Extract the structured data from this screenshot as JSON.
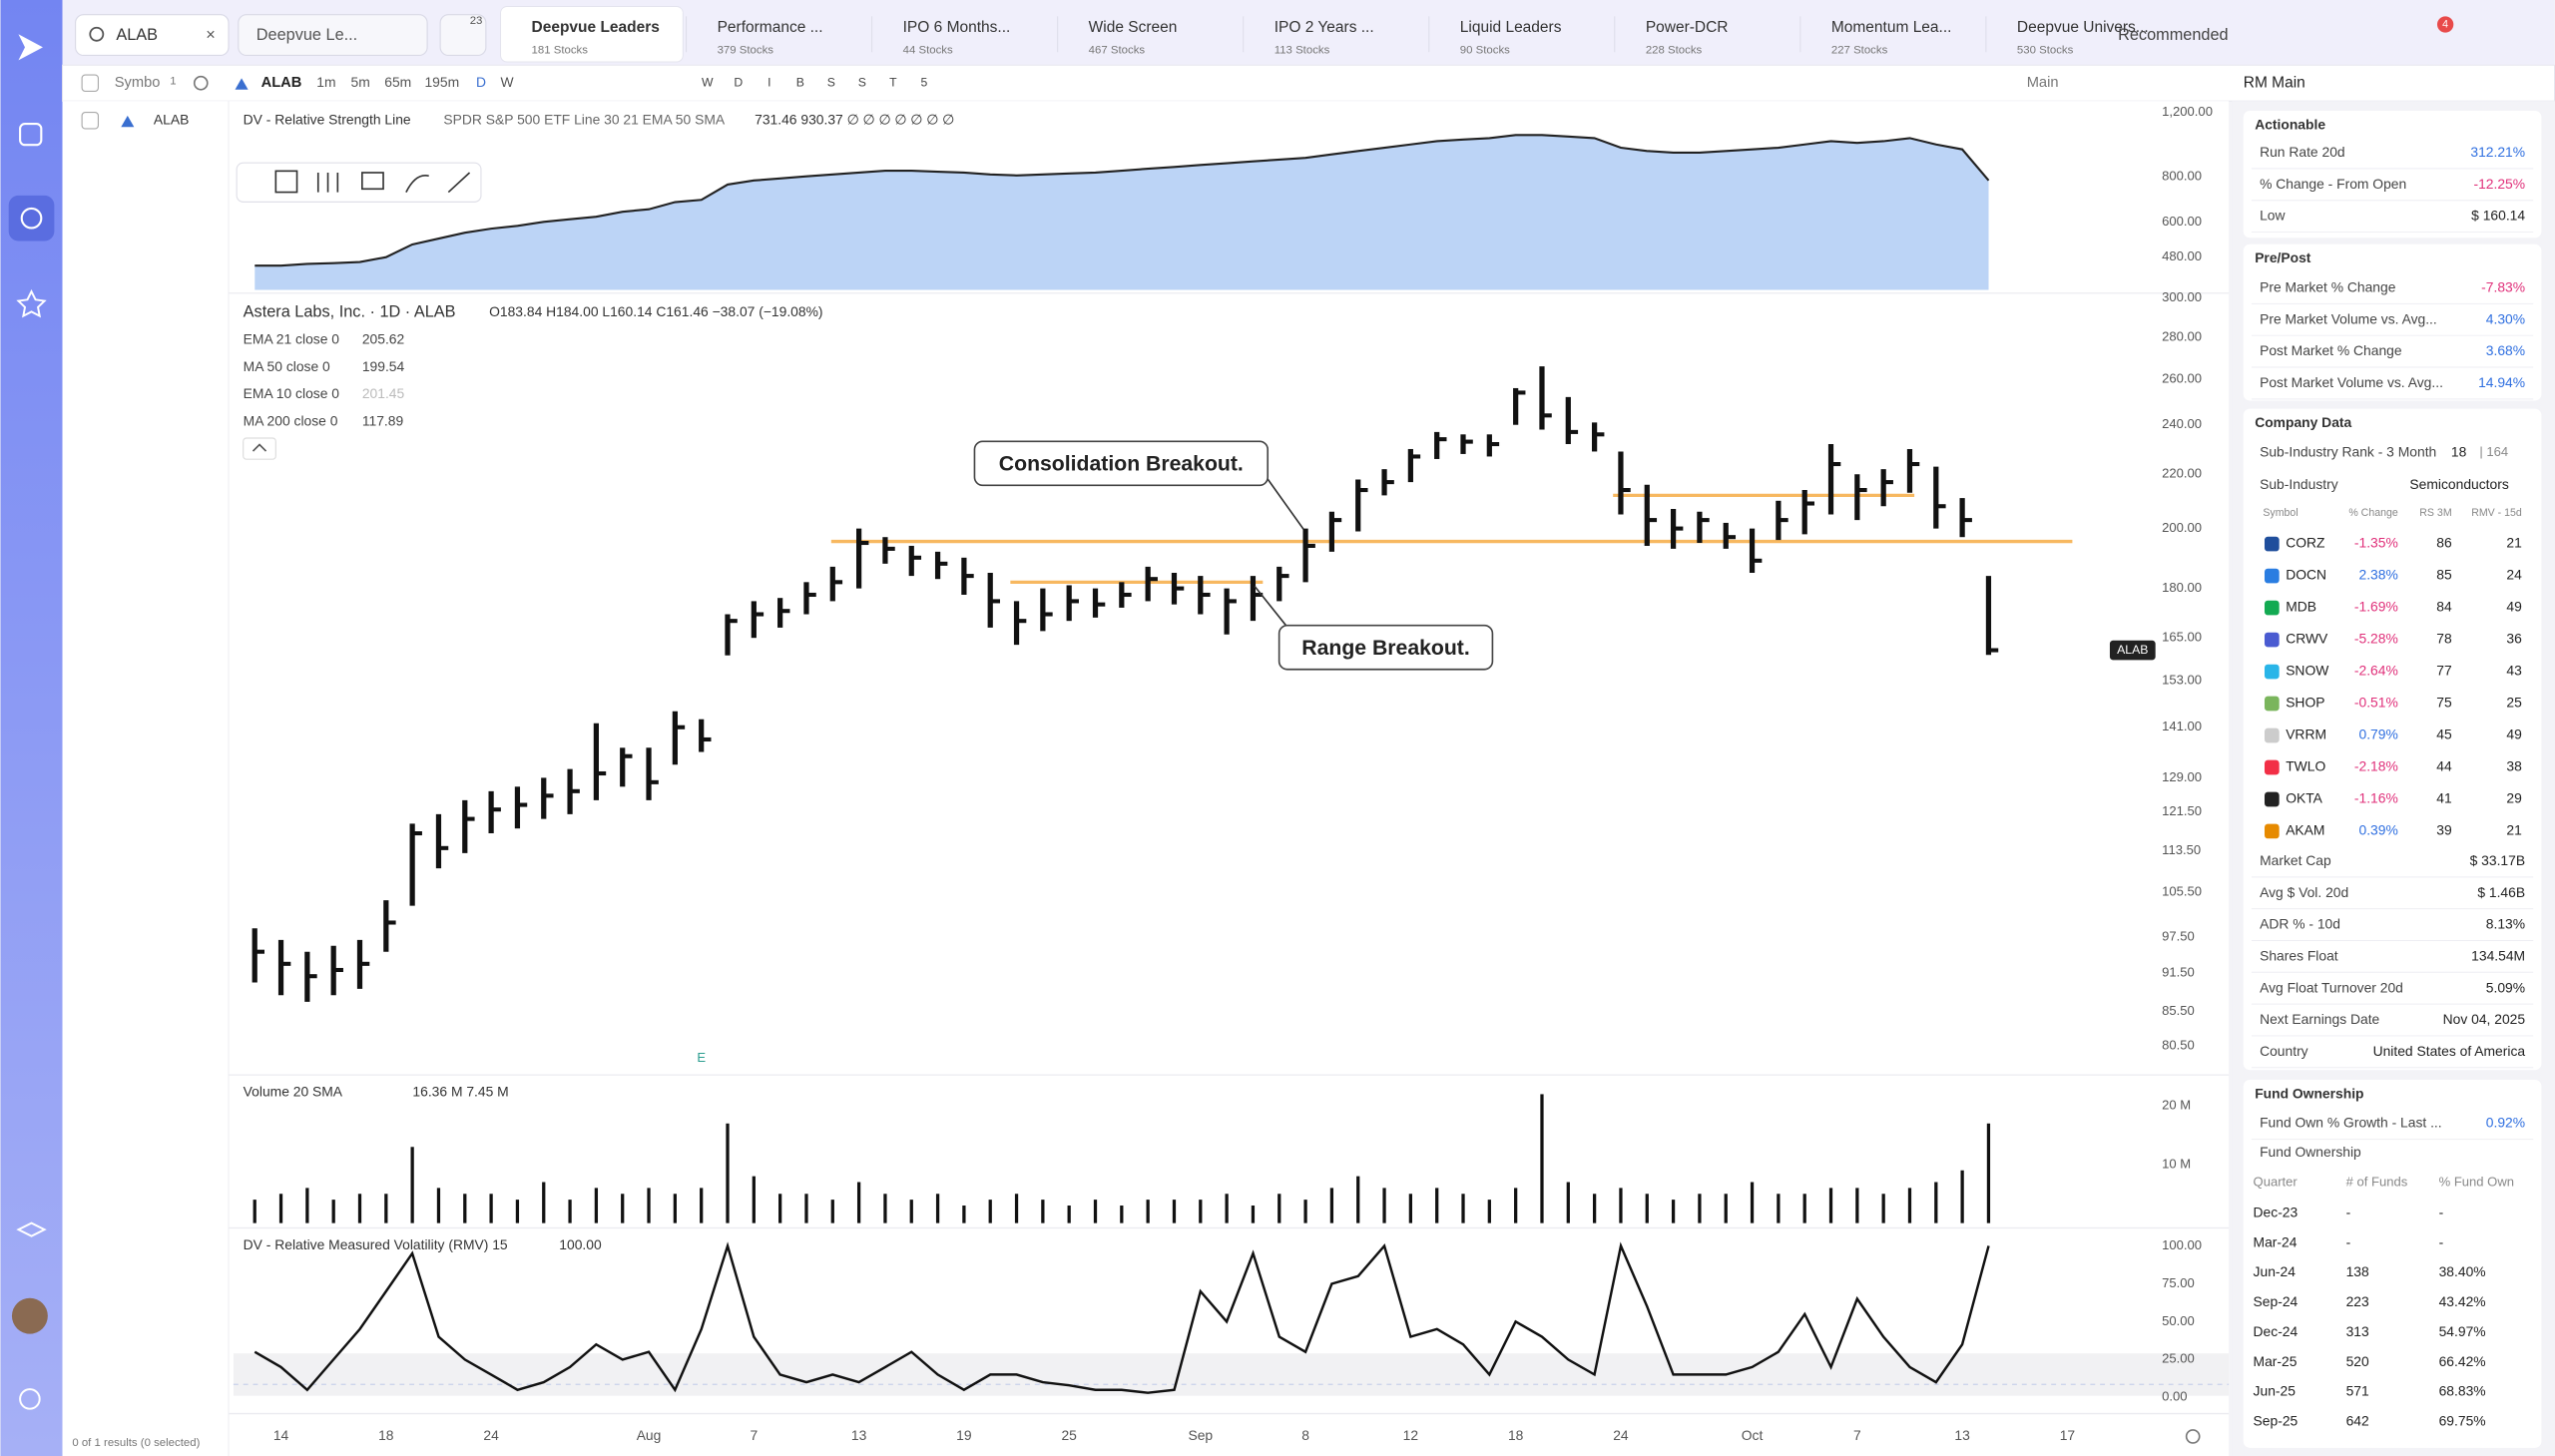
{
  "top_bar": {
    "search": "ALAB",
    "watchlist": "Deepvue Le...",
    "filter_count": "23",
    "tabs": [
      {
        "title": "Deepvue Leaders",
        "subtitle": "181 Stocks"
      },
      {
        "title": "Performance ...",
        "subtitle": "379 Stocks"
      },
      {
        "title": "IPO 6 Months...",
        "subtitle": "44 Stocks"
      },
      {
        "title": "Wide Screen",
        "subtitle": "467 Stocks"
      },
      {
        "title": "IPO 2 Years ...",
        "subtitle": "113 Stocks"
      },
      {
        "title": "Liquid Leaders",
        "subtitle": "90 Stocks"
      },
      {
        "title": "Power-DCR",
        "subtitle": "228 Stocks"
      },
      {
        "title": "Momentum Lea...",
        "subtitle": "227 Stocks"
      },
      {
        "title": "Deepvue Univers...",
        "subtitle": "530 Stocks"
      }
    ],
    "sort": "Recommended",
    "notifications": "4"
  },
  "toolbar": {
    "symbol": "Symbo",
    "symbol_count": "1",
    "ticker": "ALAB",
    "intervals": [
      "1m",
      "5m",
      "65m",
      "195m",
      "D",
      "W"
    ],
    "periods": [
      "W",
      "D",
      "I",
      "B",
      "S",
      "S",
      "T",
      "5"
    ],
    "layout": "Main"
  },
  "symbol_list": {
    "ticker": "ALAB",
    "status": "0 of 1 results (0 selected)"
  },
  "chart_data": [
    {
      "type": "area",
      "title": "DV - Relative Strength Line",
      "legend": "SPDR S&P 500 ETF Line 30 21 EMA 50 SMA",
      "legend_values": "731.46  930.37  ∅ ∅ ∅ ∅ ∅ ∅ ∅",
      "color": "#3a6fd0",
      "fill": "#bcd4f6",
      "log": true,
      "ylim": [
        390,
        1264
      ],
      "yticks": [
        {
          "value": 1200,
          "label": "1,200.00"
        },
        {
          "value": 800,
          "label": "800.00"
        },
        {
          "value": 600,
          "label": "600.00"
        },
        {
          "value": 480,
          "label": "480.00"
        }
      ],
      "values": [
        455,
        455,
        460,
        462,
        465,
        480,
        520,
        540,
        560,
        575,
        585,
        600,
        610,
        620,
        640,
        650,
        680,
        690,
        760,
        780,
        790,
        800,
        810,
        820,
        830,
        830,
        825,
        820,
        810,
        805,
        810,
        815,
        820,
        830,
        840,
        850,
        860,
        870,
        880,
        890,
        900,
        920,
        940,
        960,
        980,
        1000,
        1010,
        1020,
        1040,
        1040,
        1030,
        1020,
        960,
        940,
        930,
        930,
        940,
        950,
        960,
        980,
        1000,
        990,
        1000,
        1020,
        980,
        950,
        780,
        null,
        null,
        null
      ]
    },
    {
      "type": "ohlc",
      "title": "Astera Labs, Inc. · 1D · ALAB",
      "ohlc_text": "O183.84 H184.00 L160.14 C161.46 −38.07 (−19.08%)",
      "badge": "ALAB",
      "earnings": "E",
      "color": "#111111",
      "level_color": "#f7b860",
      "log": true,
      "indicators": [
        {
          "name": "EMA 21 close 0",
          "value": 205.62
        },
        {
          "name": "MA 50 close 0",
          "value": 199.54
        },
        {
          "name": "EMA 10 close 0",
          "value": 201.45
        },
        {
          "name": "MA 200 close 0",
          "value": 117.89
        }
      ],
      "annotations": [
        "Consolidation Breakout.",
        "Range Breakout."
      ],
      "levels": [
        195.5,
        182,
        212
      ],
      "ylim": [
        77.6,
        304.3
      ],
      "yticks": [
        {
          "value": 300,
          "label": "300.00"
        },
        {
          "value": 280,
          "label": "280.00"
        },
        {
          "value": 260,
          "label": "260.00"
        },
        {
          "value": 240,
          "label": "240.00"
        },
        {
          "value": 220,
          "label": "220.00"
        },
        {
          "value": 200,
          "label": "200.00"
        },
        {
          "value": 180,
          "label": "180.00"
        },
        {
          "value": 165,
          "label": "165.00"
        },
        {
          "value": 153,
          "label": "153.00"
        },
        {
          "value": 141,
          "label": "141.00"
        },
        {
          "value": 129,
          "label": "129.00"
        },
        {
          "value": 121.5,
          "label": "121.50"
        },
        {
          "value": 113.5,
          "label": "113.50"
        },
        {
          "value": 105.5,
          "label": "105.50"
        },
        {
          "value": 97.5,
          "label": "97.50"
        },
        {
          "value": 91.5,
          "label": "91.50"
        },
        {
          "value": 85.5,
          "label": "85.50"
        },
        {
          "value": 80.5,
          "label": "80.50"
        }
      ],
      "categories": [
        null,
        "14",
        null,
        null,
        null,
        "18",
        null,
        null,
        null,
        "24",
        null,
        null,
        null,
        null,
        null,
        "Aug",
        null,
        null,
        null,
        "7",
        null,
        null,
        null,
        "13",
        null,
        null,
        null,
        "19",
        null,
        null,
        null,
        "25",
        null,
        null,
        null,
        null,
        "Sep",
        null,
        null,
        null,
        "8",
        null,
        null,
        null,
        "12",
        null,
        null,
        null,
        "18",
        null,
        null,
        null,
        "24",
        null,
        null,
        null,
        null,
        "Oct",
        null,
        null,
        null,
        "7",
        null,
        null,
        null,
        "13",
        null,
        null,
        null,
        "17"
      ],
      "high": [
        99,
        97,
        95,
        96,
        97,
        104,
        119,
        121,
        124,
        126,
        127,
        129,
        131,
        142,
        136,
        136,
        145,
        143,
        172,
        176,
        177,
        182,
        187,
        200,
        197,
        194,
        192,
        190,
        185,
        176,
        180,
        181,
        180,
        182,
        187,
        185,
        184,
        180,
        184,
        187,
        200,
        206,
        218,
        222,
        230,
        237,
        236,
        236,
        256,
        266,
        252,
        241,
        229,
        216,
        207,
        206,
        202,
        200,
        210,
        214,
        232,
        220,
        222,
        230,
        223,
        211,
        184,
        null,
        null,
        null
      ],
      "low": [
        90,
        88,
        87,
        88,
        89,
        95,
        103,
        110,
        113,
        117,
        118,
        120,
        121,
        124,
        127,
        124,
        132,
        135,
        160,
        165,
        168,
        172,
        176,
        180,
        188,
        184,
        183,
        178,
        168,
        163,
        167,
        170,
        171,
        174,
        176,
        175,
        172,
        166,
        170,
        176,
        182,
        192,
        199,
        212,
        217,
        226,
        228,
        227,
        240,
        238,
        232,
        229,
        205,
        194,
        193,
        195,
        193,
        185,
        196,
        198,
        205,
        203,
        208,
        213,
        200,
        197,
        160.14,
        null,
        null,
        null
      ],
      "close": [
        95,
        93,
        91,
        92,
        93,
        100,
        117,
        114,
        120,
        122,
        123,
        125,
        126,
        130,
        134,
        128,
        141,
        138,
        170,
        172,
        173,
        178,
        182,
        195,
        193,
        190,
        188,
        184,
        176,
        170,
        172,
        176,
        175,
        178,
        183,
        180,
        178,
        176,
        178,
        184,
        194,
        203,
        214,
        217,
        227,
        234,
        233,
        232,
        254,
        244,
        237,
        236,
        214,
        203,
        200,
        203,
        197,
        189,
        203,
        209,
        224,
        214,
        217,
        224,
        208,
        203,
        161.46,
        null,
        null,
        null
      ]
    },
    {
      "type": "bar",
      "title": "Volume 20 SMA",
      "legend_values": "16.36 M  7.45 M",
      "color": "#111111",
      "ylim": [
        0,
        23.9
      ],
      "yticks": [
        {
          "value": 20,
          "label": "20 M"
        },
        {
          "value": 10,
          "label": "10 M"
        }
      ],
      "values": [
        4,
        5,
        6,
        4,
        5,
        5,
        13,
        6,
        5,
        5,
        4,
        7,
        4,
        6,
        5,
        6,
        5,
        6,
        17,
        8,
        5,
        5,
        4,
        7,
        5,
        4,
        5,
        3,
        4,
        5,
        4,
        3,
        4,
        3,
        4,
        4,
        4,
        5,
        3,
        5,
        4,
        6,
        8,
        6,
        5,
        6,
        5,
        4,
        6,
        22,
        7,
        5,
        6,
        5,
        4,
        5,
        5,
        7,
        5,
        5,
        6,
        6,
        5,
        6,
        7,
        9,
        17,
        null,
        null,
        null
      ]
    },
    {
      "type": "line",
      "title": "DV - Relative Measured Volatility (RMV) 15",
      "legend_values": "100.00",
      "color": "#111111",
      "ylim": [
        0,
        100
      ],
      "yticks": [
        {
          "value": 100,
          "label": "100.00"
        },
        {
          "value": 75,
          "label": "75.00"
        },
        {
          "value": 50,
          "label": "50.00"
        },
        {
          "value": 25,
          "label": "25.00"
        },
        {
          "value": 0,
          "label": "0.00"
        }
      ],
      "values": [
        30,
        20,
        5,
        25,
        45,
        70,
        95,
        40,
        25,
        15,
        5,
        10,
        20,
        35,
        25,
        30,
        5,
        45,
        100,
        40,
        15,
        10,
        15,
        10,
        20,
        30,
        15,
        5,
        15,
        15,
        10,
        8,
        5,
        5,
        3,
        5,
        70,
        50,
        95,
        40,
        30,
        75,
        80,
        100,
        40,
        45,
        35,
        15,
        50,
        40,
        25,
        15,
        100,
        60,
        15,
        15,
        15,
        20,
        30,
        55,
        20,
        65,
        40,
        20,
        10,
        35,
        100,
        null,
        null,
        null
      ]
    }
  ],
  "sidebar": {
    "title": "RM Main",
    "actionable": {
      "title": "Actionable",
      "rows": [
        [
          "Run Rate 20d",
          "312.21%"
        ],
        [
          "% Change - From Open",
          "-12.25%"
        ],
        [
          "Low",
          "$ 160.14"
        ]
      ]
    },
    "pre_post": {
      "title": "Pre/Post",
      "rows": [
        [
          "Pre Market % Change",
          "-7.83%"
        ],
        [
          "Pre Market Volume vs. Avg...",
          "4.30%"
        ],
        [
          "Post Market % Change",
          "3.68%"
        ],
        [
          "Post Market Volume vs. Avg...",
          "14.94%"
        ]
      ]
    },
    "company": {
      "title": "Company Data",
      "rank": [
        "Sub-Industry Rank - 3 Month",
        "18",
        "| 164"
      ],
      "sub_industry": [
        "Sub-Industry",
        "Semiconductors"
      ],
      "peer_header": [
        "Symbol",
        "% Change",
        "RS 3M",
        "RMV - 15d"
      ],
      "peers": [
        [
          "CORZ",
          "-1.35%",
          "86",
          "21"
        ],
        [
          "DOCN",
          "2.38%",
          "85",
          "24"
        ],
        [
          "MDB",
          "-1.69%",
          "84",
          "49"
        ],
        [
          "CRWV",
          "-5.28%",
          "78",
          "36"
        ],
        [
          "SNOW",
          "-2.64%",
          "77",
          "43"
        ],
        [
          "SHOP",
          "-0.51%",
          "75",
          "25"
        ],
        [
          "VRRM",
          "0.79%",
          "45",
          "49"
        ],
        [
          "TWLO",
          "-2.18%",
          "44",
          "38"
        ],
        [
          "OKTA",
          "-1.16%",
          "41",
          "29"
        ],
        [
          "AKAM",
          "0.39%",
          "39",
          "21"
        ]
      ],
      "rows": [
        [
          "Market Cap",
          "$ 33.17B"
        ],
        [
          "Avg $ Vol. 20d",
          "$ 1.46B"
        ],
        [
          "ADR % - 10d",
          "8.13%"
        ],
        [
          "Shares Float",
          "134.54M"
        ],
        [
          "Avg Float Turnover 20d",
          "5.09%"
        ],
        [
          "Next Earnings Date",
          "Nov 04, 2025"
        ],
        [
          "Country",
          "United States of America"
        ]
      ]
    },
    "funds": {
      "title": "Fund Ownership",
      "rows": [
        [
          "Fund Own % Growth - Last ...",
          "0.92%"
        ]
      ],
      "table_title": "Fund Ownership",
      "header": [
        "Quarter",
        "# of Funds",
        "% Fund Own"
      ],
      "table": [
        [
          "Dec-23",
          "-",
          "-"
        ],
        [
          "Mar-24",
          "-",
          "-"
        ],
        [
          "Jun-24",
          "138",
          "38.40%"
        ],
        [
          "Sep-24",
          "223",
          "43.42%"
        ],
        [
          "Dec-24",
          "313",
          "54.97%"
        ],
        [
          "Mar-25",
          "520",
          "66.42%"
        ],
        [
          "Jun-25",
          "571",
          "68.83%"
        ],
        [
          "Sep-25",
          "642",
          "69.75%"
        ]
      ]
    }
  }
}
